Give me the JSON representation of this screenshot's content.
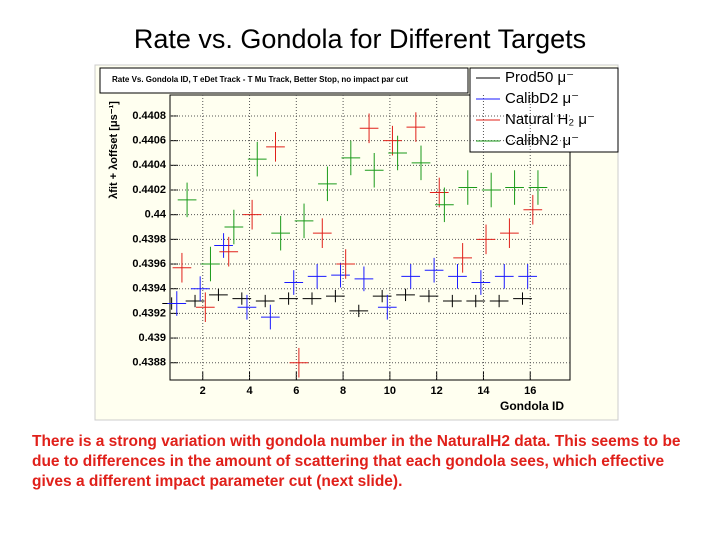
{
  "page_title": "Rate vs. Gondola for Different Targets",
  "chart_data": {
    "type": "errorbar",
    "title": "Rate Vs. Gondola ID, T eDet Track - T Mu Track, Better Stop, no impact par cut",
    "x_label": "Gondola ID",
    "y_label": "λfit + λoffset [μs⁻¹]",
    "x": [
      1,
      2,
      3,
      4,
      5,
      6,
      7,
      8,
      9,
      10,
      11,
      12,
      13,
      14,
      15,
      16
    ],
    "xlim": [
      0.6,
      17.7
    ],
    "xticks": [
      2,
      4,
      6,
      8,
      10,
      12,
      14,
      16
    ],
    "ylim": [
      0.43866,
      0.44097
    ],
    "yticks": [
      0.4388,
      0.439,
      0.4392,
      0.4394,
      0.4396,
      0.4398,
      0.44,
      0.4402,
      0.4404,
      0.4406,
      0.4408
    ],
    "grid": true,
    "legend": "top-right",
    "series": [
      {
        "name": "Prod50 μ⁻",
        "color": "#000000",
        "values": [
          0.43928,
          0.4393,
          0.43935,
          0.43932,
          0.4393,
          0.43932,
          0.43932,
          0.43934,
          0.43922,
          0.43934,
          0.43935,
          0.43934,
          0.4393,
          0.4393,
          0.4393,
          0.43932
        ],
        "errors": [
          5e-05,
          5e-05,
          5e-05,
          5e-05,
          5e-05,
          5e-05,
          5e-05,
          5e-05,
          5e-05,
          5e-05,
          5e-05,
          5e-05,
          5e-05,
          5e-05,
          5e-05,
          5e-05
        ]
      },
      {
        "name": "CalibD2 μ⁻",
        "color": "#1a1aff",
        "values": [
          0.43928,
          0.4394,
          0.43975,
          0.43925,
          0.43917,
          0.43945,
          0.4395,
          0.43951,
          0.43948,
          0.43925,
          0.4395,
          0.43955,
          0.4395,
          0.43945,
          0.4395,
          0.4395
        ],
        "errors": [
          0.0001,
          0.0001,
          0.0001,
          0.0001,
          0.0001,
          0.0001,
          0.0001,
          0.0001,
          0.0001,
          0.0001,
          0.0001,
          0.0001,
          0.0001,
          0.0001,
          0.0001,
          0.0001
        ]
      },
      {
        "name": "Natural H₂ μ⁻",
        "color": "#e0201a",
        "values": [
          0.43957,
          0.43925,
          0.4397,
          0.44,
          0.44055,
          0.4388,
          0.43985,
          0.4396,
          0.4407,
          0.4406,
          0.44071,
          0.44018,
          0.43965,
          0.4398,
          0.43985,
          0.44004
        ],
        "errors": [
          0.00012,
          0.00012,
          0.00012,
          0.00012,
          0.00012,
          0.00012,
          0.00012,
          0.00012,
          0.00012,
          0.00012,
          0.00012,
          0.00012,
          0.00012,
          0.00012,
          0.00012,
          0.00012
        ]
      },
      {
        "name": "CalibN2 μ⁻",
        "color": "#1a9a1a",
        "values": [
          0.44012,
          0.4396,
          0.4399,
          0.44045,
          0.43985,
          0.43995,
          0.44025,
          0.44046,
          0.44036,
          0.4405,
          0.44042,
          0.44008,
          0.44022,
          0.4402,
          0.44022,
          0.44022
        ],
        "errors": [
          0.00014,
          0.00014,
          0.00014,
          0.00014,
          0.00014,
          0.00014,
          0.00014,
          0.00014,
          0.00014,
          0.00014,
          0.00014,
          0.00014,
          0.00014,
          0.00014,
          0.00014,
          0.00014
        ]
      }
    ]
  },
  "caption": "There is a strong variation with gondola number in the NaturalH2 data.  This seems to be due to differences in the amount of scattering that each gondola sees, which effective gives a different impact parameter cut (next slide)."
}
